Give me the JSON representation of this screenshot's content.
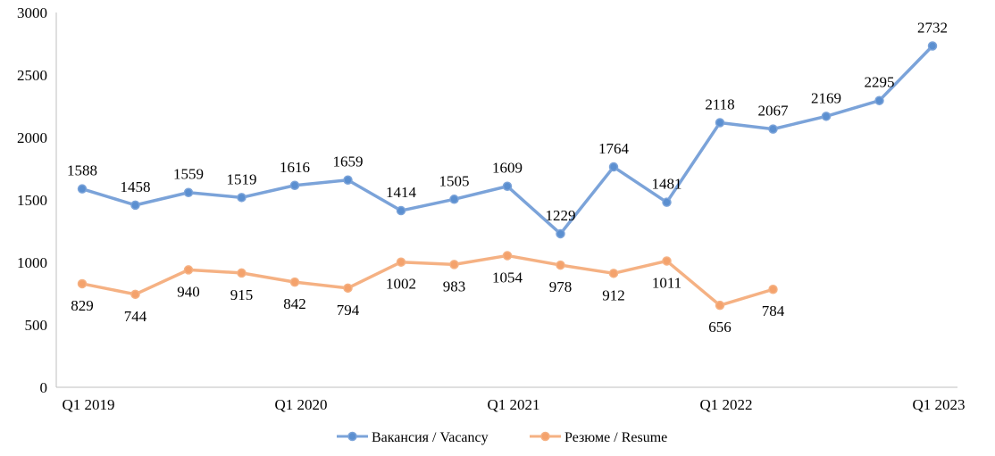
{
  "chart_data": {
    "type": "line",
    "title": "",
    "xlabel": "",
    "ylabel": "",
    "ylim": [
      0,
      3000
    ],
    "yticks": [
      0,
      500,
      1000,
      1500,
      2000,
      2500,
      3000
    ],
    "grid": false,
    "legend_position": "bottom",
    "x_tick_labels": [
      {
        "index": 0,
        "label": "Q1 2019"
      },
      {
        "index": 4,
        "label": "Q1 2020"
      },
      {
        "index": 8,
        "label": "Q1 2021"
      },
      {
        "index": 12,
        "label": "Q1 2022"
      },
      {
        "index": 16,
        "label": "Q1 2023"
      }
    ],
    "point_count": 17,
    "series": [
      {
        "name": "Вакансия / Vacancy",
        "color": "#7ba3d9",
        "marker_color": "#5b8fd0",
        "label_position": "above",
        "values": [
          1588,
          1458,
          1559,
          1519,
          1616,
          1659,
          1414,
          1505,
          1609,
          1229,
          1764,
          1481,
          2118,
          2067,
          2169,
          2295,
          2732
        ]
      },
      {
        "name": "Резюме / Resume",
        "color": "#f5b183",
        "marker_color": "#f4a26c",
        "label_position": "below",
        "values": [
          829,
          744,
          940,
          915,
          842,
          794,
          1002,
          983,
          1054,
          978,
          912,
          1011,
          656,
          784
        ]
      }
    ]
  }
}
